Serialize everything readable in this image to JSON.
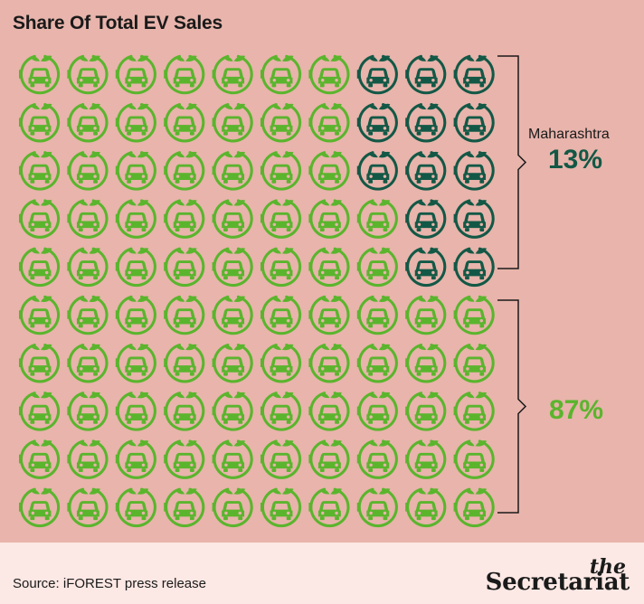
{
  "title": "Share Of Total EV Sales",
  "chart_data": {
    "type": "waffle",
    "rows": 10,
    "cols": 10,
    "total_units": 100,
    "segments": [
      {
        "name": "Maharashtra",
        "value": 13,
        "label": "13%",
        "color": "#135846"
      },
      {
        "name": "",
        "value": 87,
        "label": "87%",
        "color": "#5ab52d"
      }
    ]
  },
  "annotations": {
    "top_label": "Maharashtra",
    "top_pct": "13%",
    "bottom_pct": "87%"
  },
  "footer": {
    "source": "Source: iFOREST press release",
    "brand_the": "the",
    "brand_name": "Secretariat"
  },
  "icon": "ev-car-plug-leaf-icon"
}
